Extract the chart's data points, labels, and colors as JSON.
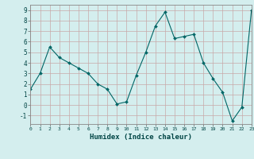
{
  "x": [
    0,
    1,
    2,
    3,
    4,
    5,
    6,
    7,
    8,
    9,
    10,
    11,
    12,
    13,
    14,
    15,
    16,
    17,
    18,
    19,
    20,
    21,
    22,
    23
  ],
  "y": [
    1.5,
    3.0,
    5.5,
    4.5,
    4.0,
    3.5,
    3.0,
    2.0,
    1.5,
    0.1,
    0.3,
    2.8,
    5.0,
    7.5,
    8.8,
    6.3,
    6.5,
    6.7,
    4.0,
    2.5,
    1.2,
    -1.5,
    -0.2,
    9.0
  ],
  "xlabel": "Humidex (Indice chaleur)",
  "line_color": "#006666",
  "bg_color": "#d4eeee",
  "grid_color_major": "#c8a8a8",
  "grid_color_minor": "#ddd0d0",
  "xlim": [
    0,
    23
  ],
  "ylim": [
    -1.8,
    9.5
  ],
  "yticks": [
    -1,
    0,
    1,
    2,
    3,
    4,
    5,
    6,
    7,
    8,
    9
  ],
  "xticks": [
    0,
    1,
    2,
    3,
    4,
    5,
    6,
    7,
    8,
    9,
    10,
    11,
    12,
    13,
    14,
    15,
    16,
    17,
    18,
    19,
    20,
    21,
    22,
    23
  ]
}
